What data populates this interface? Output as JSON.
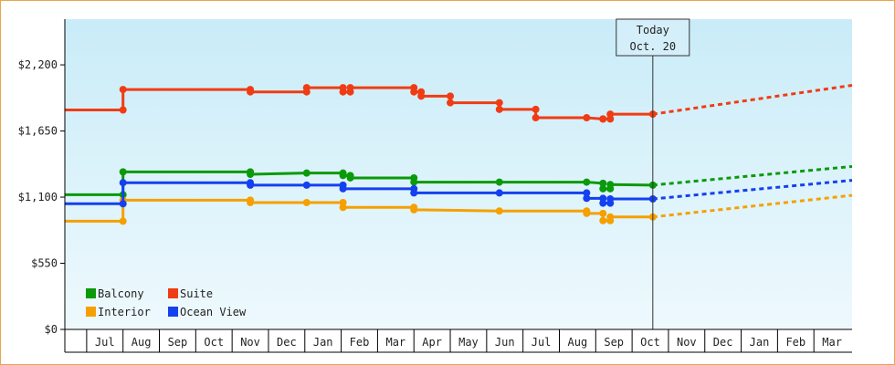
{
  "chart_data": {
    "type": "line",
    "title": "",
    "xlabel": "",
    "ylabel": "",
    "y_tick_values": [
      0,
      550,
      1100,
      1650,
      2200
    ],
    "y_tick_labels": [
      "$0",
      "$550",
      "$1,100",
      "$1,650",
      "$2,200"
    ],
    "ylim": [
      0,
      2580
    ],
    "x_month_labels": [
      "Jul",
      "Aug",
      "Sep",
      "Oct",
      "Nov",
      "Dec",
      "Jan",
      "Feb",
      "Mar",
      "Apr",
      "May",
      "Jun",
      "Jul",
      "Aug",
      "Sep",
      "Oct",
      "Nov",
      "Dec",
      "Jan",
      "Feb",
      "Mar"
    ],
    "x_month_starts": [
      -0.35,
      0.65,
      1.65,
      2.65,
      3.65,
      4.65,
      5.65,
      6.65,
      7.65,
      8.65,
      9.65,
      10.65,
      11.65,
      12.65,
      13.65,
      14.65,
      15.65,
      16.65,
      17.65,
      18.65,
      19.65
    ],
    "x_month_ends": [
      0.65,
      1.65,
      2.65,
      3.65,
      4.65,
      5.65,
      6.65,
      7.65,
      8.65,
      9.65,
      10.65,
      11.65,
      12.65,
      13.65,
      14.65,
      15.65,
      16.65,
      17.65,
      18.65,
      19.65,
      20.65
    ],
    "x_range": [
      -0.95,
      20.7
    ],
    "today": {
      "line1": "Today",
      "line2": "Oct. 20",
      "x": 15.22
    },
    "legend_placement": "bottom-left",
    "grid": false,
    "series": [
      {
        "name": "Balcony",
        "color": "#0a9a0a",
        "x": [
          -0.95,
          0.65,
          0.65,
          4.15,
          4.15,
          5.7,
          6.7,
          6.7,
          6.9,
          6.9,
          8.65,
          8.65,
          11.0,
          13.4,
          13.85,
          13.85,
          14.05,
          14.05,
          15.22
        ],
        "y": [
          1120,
          1120,
          1310,
          1310,
          1290,
          1300,
          1300,
          1280,
          1280,
          1260,
          1260,
          1225,
          1225,
          1225,
          1215,
          1170,
          1170,
          1205,
          1200
        ],
        "proj_x": [
          15.22,
          20.7
        ],
        "proj_y": [
          1200,
          1355
        ]
      },
      {
        "name": "Suite",
        "color": "#f03c14",
        "x": [
          -0.95,
          0.65,
          0.65,
          4.15,
          4.15,
          5.7,
          5.7,
          6.7,
          6.7,
          6.9,
          6.9,
          8.65,
          8.65,
          8.85,
          8.85,
          9.65,
          9.65,
          11.0,
          11.0,
          12.0,
          12.0,
          13.4,
          13.85,
          13.85,
          14.05,
          14.05,
          15.22
        ],
        "y": [
          1825,
          1825,
          1995,
          1995,
          1975,
          1975,
          2010,
          2010,
          1975,
          1975,
          2010,
          2010,
          1975,
          1975,
          1940,
          1940,
          1885,
          1885,
          1830,
          1830,
          1760,
          1760,
          1750,
          1750,
          1750,
          1790,
          1790
        ],
        "proj_x": [
          15.22,
          20.7
        ],
        "proj_y": [
          1790,
          2030
        ]
      },
      {
        "name": "Interior",
        "color": "#f5a000",
        "x": [
          -0.95,
          0.65,
          0.65,
          4.15,
          4.15,
          5.7,
          6.7,
          6.7,
          8.65,
          8.65,
          11.0,
          13.4,
          13.4,
          13.85,
          13.85,
          14.05,
          14.05,
          15.22
        ],
        "y": [
          900,
          900,
          1075,
          1075,
          1055,
          1055,
          1055,
          1015,
          1015,
          995,
          985,
          985,
          965,
          965,
          905,
          905,
          935,
          935
        ],
        "proj_x": [
          15.22,
          20.7
        ],
        "proj_y": [
          935,
          1115
        ]
      },
      {
        "name": "Ocean View",
        "color": "#1440f0",
        "x": [
          -0.95,
          0.65,
          0.65,
          4.15,
          4.15,
          5.7,
          6.7,
          6.7,
          8.65,
          8.65,
          11.0,
          13.4,
          13.4,
          13.85,
          13.85,
          14.05,
          14.05,
          15.22
        ],
        "y": [
          1045,
          1045,
          1220,
          1220,
          1200,
          1200,
          1200,
          1170,
          1170,
          1135,
          1135,
          1135,
          1090,
          1090,
          1050,
          1050,
          1085,
          1085
        ],
        "proj_x": [
          15.22,
          20.7
        ],
        "proj_y": [
          1085,
          1240
        ]
      }
    ]
  }
}
